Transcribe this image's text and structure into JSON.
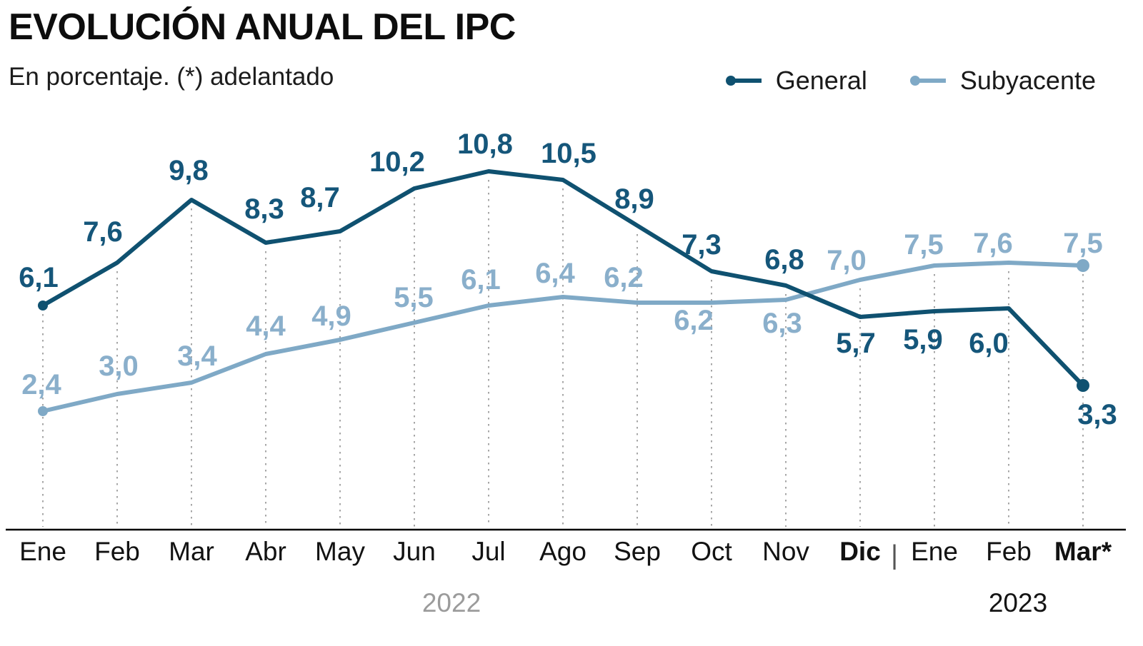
{
  "header": {
    "title": "EVOLUCIÓN ANUAL DEL IPC",
    "subtitle": "En porcentaje. (*) adelantado"
  },
  "legend": {
    "items": [
      {
        "label": "General"
      },
      {
        "label": "Subyacente"
      }
    ]
  },
  "colors": {
    "general_line": "#0F5170",
    "general_label": "#15567A",
    "subyacente_line": "#7FA9C6",
    "subyacente_label": "#8AAFCB",
    "axis": "#000000",
    "guide": "#9C9C9C",
    "month_label": "#121212",
    "year_2022": "#9B9B9B",
    "year_2023": "#141414",
    "separator": "#555555",
    "legend_text": "#1A1A1A"
  },
  "chart_data": {
    "type": "line",
    "title": "EVOLUCIÓN ANUAL DEL IPC",
    "subtitle": "En porcentaje. (*) adelantado",
    "categories": [
      "Ene",
      "Feb",
      "Mar",
      "Abr",
      "May",
      "Jun",
      "Jul",
      "Ago",
      "Sep",
      "Oct",
      "Nov",
      "Dic",
      "Ene",
      "Feb",
      "Mar*"
    ],
    "bold_category_indices": [
      11,
      14
    ],
    "year_separator": "|",
    "years": [
      {
        "label": "2022",
        "color": "#9B9B9B"
      },
      {
        "label": "2023",
        "color": "#141414"
      }
    ],
    "series": [
      {
        "name": "General",
        "values": [
          6.1,
          7.6,
          9.8,
          8.3,
          8.7,
          10.2,
          10.8,
          10.5,
          8.9,
          7.3,
          6.8,
          5.7,
          5.9,
          6.0,
          3.3
        ],
        "labels": [
          "6,1",
          "7,6",
          "9,8",
          "8,3",
          "8,7",
          "10,2",
          "10,8",
          "10,5",
          "8,9",
          "7,3",
          "6,8",
          "5,7",
          "5,9",
          "6,0",
          "3,3"
        ],
        "label_below_indices": [
          11,
          12,
          13,
          14
        ],
        "endpoint_dots": [
          0,
          14
        ]
      },
      {
        "name": "Subyacente",
        "values": [
          2.4,
          3.0,
          3.4,
          4.4,
          4.9,
          5.5,
          6.1,
          6.4,
          6.2,
          6.2,
          6.3,
          7.0,
          7.5,
          7.6,
          7.5
        ],
        "labels": [
          "2,4",
          "3,0",
          "3,4",
          "4,4",
          "4,9",
          "5,5",
          "6,1",
          "6,4",
          "6,2",
          "6,2",
          "6,3",
          "7,0",
          "7,5",
          "7,6",
          "7,5"
        ],
        "label_below_indices": [
          9,
          10
        ],
        "endpoint_dots": [
          0,
          14
        ]
      }
    ],
    "ylim": [
      0,
      12
    ],
    "grid": "vertical-dotted",
    "legend_position": "top-right"
  }
}
